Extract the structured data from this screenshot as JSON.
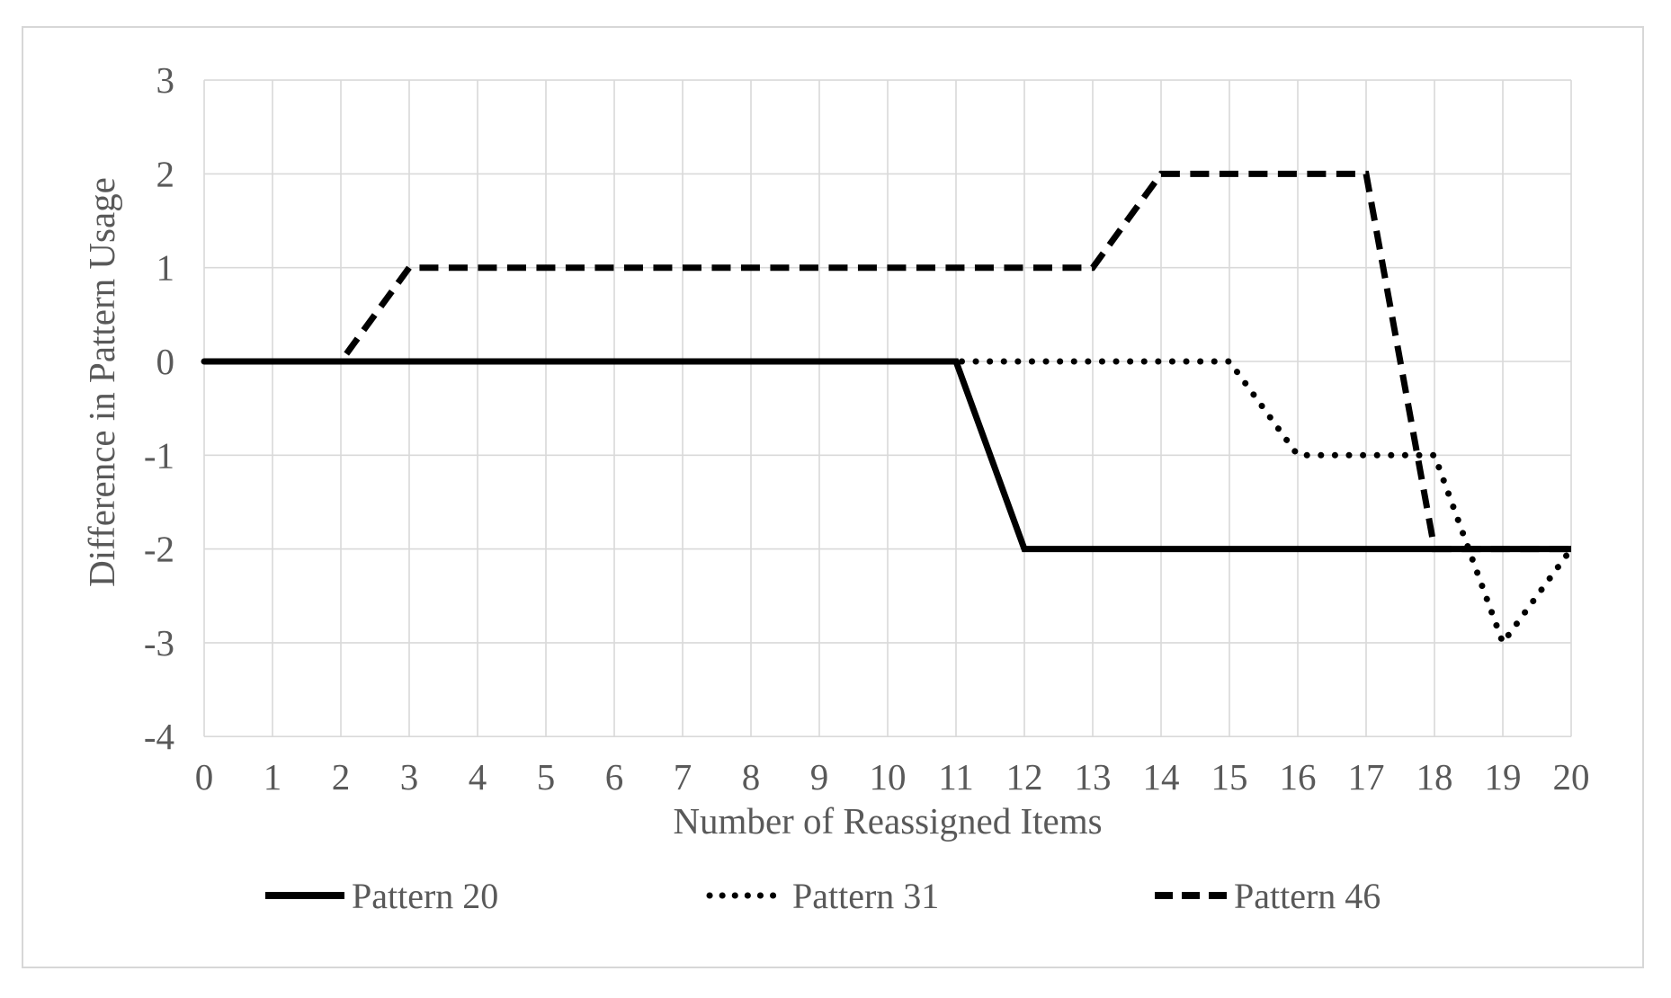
{
  "figure": {
    "background": "#ffffff",
    "border_color": "#d7d7d7"
  },
  "chart_data": {
    "type": "line",
    "title": "",
    "xlabel": "Number of Reassigned Items",
    "ylabel": "Difference in Pattern Usage",
    "x": [
      0,
      1,
      2,
      3,
      4,
      5,
      6,
      7,
      8,
      9,
      10,
      11,
      12,
      13,
      14,
      15,
      16,
      17,
      18,
      19,
      20
    ],
    "x_tick_labels": [
      "0",
      "1",
      "2",
      "3",
      "4",
      "5",
      "6",
      "7",
      "8",
      "9",
      "10",
      "11",
      "12",
      "13",
      "14",
      "15",
      "16",
      "17",
      "18",
      "19",
      "20"
    ],
    "y_ticks": [
      3,
      2,
      1,
      0,
      -1,
      -2,
      -3,
      -4
    ],
    "y_tick_labels": [
      "3",
      "2",
      "1",
      "0",
      "-1",
      "-2",
      "-3",
      "-4"
    ],
    "xlim": [
      0,
      20
    ],
    "ylim": [
      -4,
      3
    ],
    "grid": true,
    "legend_position": "bottom",
    "series": [
      {
        "name": "Pattern 20",
        "style": "solid",
        "values": [
          0,
          0,
          0,
          0,
          0,
          0,
          0,
          0,
          0,
          0,
          0,
          0,
          -2,
          -2,
          -2,
          -2,
          -2,
          -2,
          -2,
          -2,
          -2
        ]
      },
      {
        "name": "Pattern 31",
        "style": "dotted",
        "values": [
          0,
          0,
          0,
          0,
          0,
          0,
          0,
          0,
          0,
          0,
          0,
          0,
          0,
          0,
          0,
          0,
          -1,
          -1,
          -1,
          -3,
          -2
        ]
      },
      {
        "name": "Pattern 46",
        "style": "dashed",
        "values": [
          0,
          0,
          0,
          1,
          1,
          1,
          1,
          1,
          1,
          1,
          1,
          1,
          1,
          1,
          2,
          2,
          2,
          2,
          -2,
          -2,
          -2
        ]
      }
    ],
    "colors": {
      "line": "#000000",
      "text": "#595959",
      "grid": "#d9d9d9",
      "background": "#ffffff"
    }
  }
}
